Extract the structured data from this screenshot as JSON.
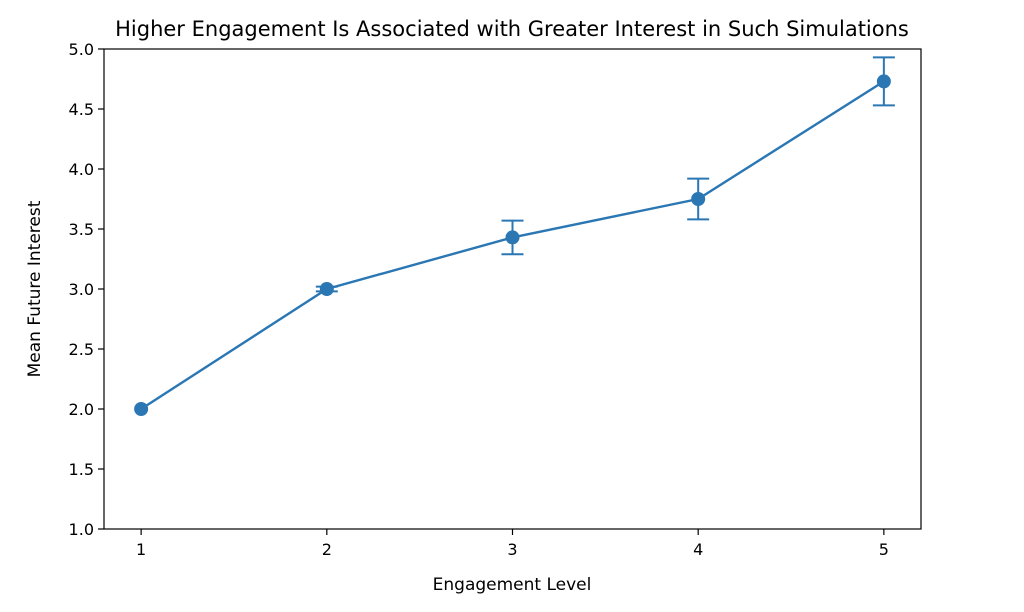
{
  "chart_data": {
    "type": "line",
    "title": "Higher Engagement Is Associated with Greater Interest in Such Simulations",
    "xlabel": "Engagement Level",
    "ylabel": "Mean Future Interest",
    "x": [
      1,
      2,
      3,
      4,
      5
    ],
    "xticks": [
      "1",
      "2",
      "3",
      "4",
      "5"
    ],
    "xlim": [
      0.8,
      5.2
    ],
    "ylim": [
      1.0,
      5.0
    ],
    "yticks": [
      "1.0",
      "1.5",
      "2.0",
      "2.5",
      "3.0",
      "3.5",
      "4.0",
      "4.5",
      "5.0"
    ],
    "grid": false,
    "series": [
      {
        "values": [
          2.0,
          3.0,
          3.43,
          3.75,
          4.73
        ],
        "error": [
          0.0,
          0.02,
          0.14,
          0.17,
          0.2
        ],
        "color": "#2a77b4"
      }
    ]
  }
}
